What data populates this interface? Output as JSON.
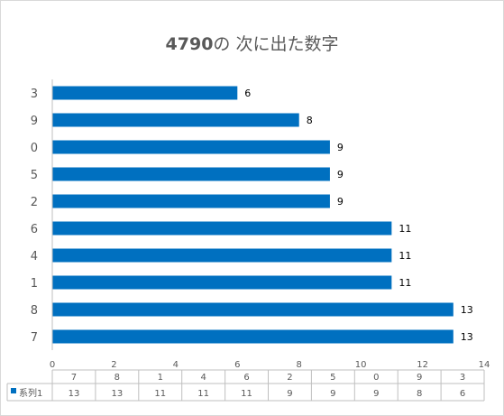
{
  "chart_data": {
    "type": "bar",
    "orientation": "horizontal",
    "title": "4790の 次に出た数字",
    "title_parts": {
      "number": "4790",
      "rest": "の 次に出た数字"
    },
    "categories": [
      "3",
      "9",
      "0",
      "5",
      "2",
      "6",
      "4",
      "1",
      "8",
      "7"
    ],
    "series": [
      {
        "name": "系列1",
        "values": [
          6,
          8,
          9,
          9,
          9,
          11,
          11,
          11,
          13,
          13
        ]
      }
    ],
    "xlim": [
      0,
      14
    ],
    "xticks": [
      0,
      2,
      4,
      6,
      8,
      10,
      12,
      14
    ],
    "grid": false,
    "data_labels": true,
    "colors": {
      "bar": "#0070c0",
      "text": "#595959",
      "axis": "#bfbfbf"
    },
    "data_table": {
      "categories": [
        "7",
        "8",
        "1",
        "4",
        "6",
        "2",
        "5",
        "0",
        "9",
        "3"
      ],
      "row_label": "系列1",
      "values": [
        13,
        13,
        11,
        11,
        11,
        9,
        9,
        9,
        8,
        6
      ]
    }
  }
}
